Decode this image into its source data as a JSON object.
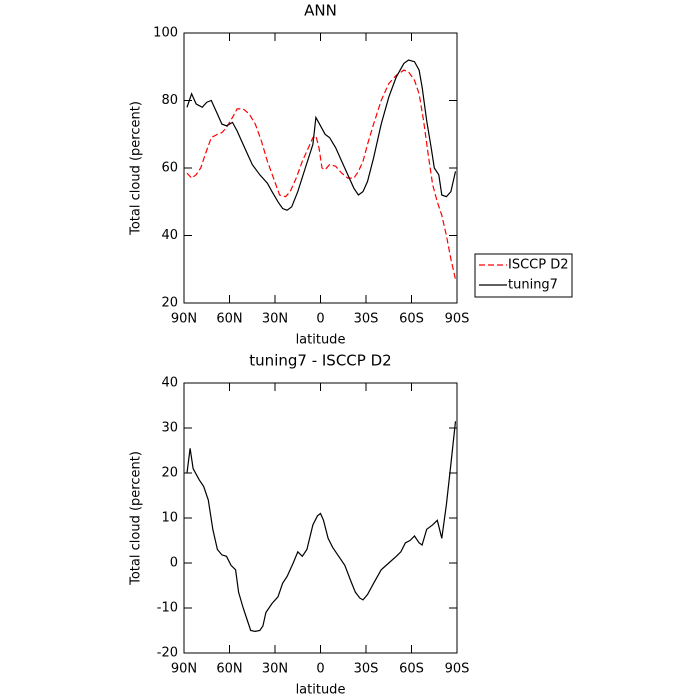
{
  "chart_data": [
    {
      "type": "line",
      "title": "ANN",
      "xlabel": "latitude",
      "ylabel": "Total cloud (percent)",
      "xlim": [
        90,
        -90
      ],
      "xticks": [
        {
          "value": 90,
          "label": "90N"
        },
        {
          "value": 60,
          "label": "60N"
        },
        {
          "value": 30,
          "label": "30N"
        },
        0,
        {
          "value": -30,
          "label": "30S"
        },
        {
          "value": -60,
          "label": "60S"
        },
        {
          "value": -90,
          "label": "90S"
        }
      ],
      "ylim": [
        20,
        100
      ],
      "yticks": [
        20,
        40,
        60,
        80,
        100
      ],
      "legend": "outside right",
      "series": [
        {
          "name": "ISCCP D2",
          "color": "#ff0000",
          "linestyle": "dashed",
          "x": [
            88,
            85,
            82,
            79,
            76,
            72,
            68,
            65,
            62,
            58,
            55,
            51,
            47,
            43,
            39,
            35,
            31,
            27,
            23,
            20,
            16,
            12,
            8,
            5,
            3,
            1,
            -1,
            -3,
            -6,
            -10,
            -14,
            -18,
            -22,
            -25,
            -28,
            -31,
            -35,
            -40,
            -45,
            -50,
            -55,
            -58,
            -62,
            -65,
            -68,
            -71,
            -74,
            -77,
            -80,
            -83,
            -86,
            -89
          ],
          "values": [
            58.5,
            57,
            58,
            60,
            64,
            69,
            70,
            70.5,
            72,
            75,
            77.5,
            77.5,
            76,
            73,
            68,
            62,
            57,
            52,
            51.5,
            53,
            57,
            62,
            66,
            69,
            69.5,
            66,
            60,
            59.5,
            61,
            60.5,
            58.5,
            57,
            57,
            59,
            62,
            67,
            73,
            80,
            85,
            87.5,
            89,
            88.5,
            86,
            82,
            74,
            64,
            55,
            50,
            46,
            40,
            33,
            27
          ]
        },
        {
          "name": "tuning7",
          "color": "#000000",
          "linestyle": "solid",
          "x": [
            88,
            85,
            82,
            78,
            75,
            72,
            68,
            65,
            62,
            58,
            55,
            52,
            48,
            45,
            40,
            35,
            32,
            28,
            25,
            22,
            19,
            15,
            10,
            5,
            3,
            0,
            -3,
            -6,
            -10,
            -14,
            -18,
            -22,
            -25,
            -28,
            -31,
            -35,
            -40,
            -45,
            -50,
            -55,
            -58,
            -62,
            -65,
            -67,
            -70,
            -73,
            -75,
            -78,
            -80,
            -83,
            -86,
            -89
          ],
          "values": [
            78,
            82,
            79,
            78,
            79.5,
            80,
            76,
            73,
            72.5,
            73.5,
            71,
            68,
            64,
            61,
            58,
            55.5,
            53,
            50,
            48,
            47.5,
            48.5,
            53,
            60,
            67,
            75,
            72.5,
            70,
            69,
            66,
            62,
            58,
            54,
            52,
            53,
            56,
            63,
            73,
            81,
            87,
            91,
            92,
            91.5,
            89,
            84,
            74,
            66,
            60,
            58,
            52,
            51.5,
            53,
            59
          ]
        }
      ]
    },
    {
      "type": "line",
      "title": "tuning7 - ISCCP D2",
      "xlabel": "latitude",
      "ylabel": "Total cloud (percent)",
      "xlim": [
        90,
        -90
      ],
      "xticks": [
        {
          "value": 90,
          "label": "90N"
        },
        {
          "value": 60,
          "label": "60N"
        },
        {
          "value": 30,
          "label": "30N"
        },
        0,
        {
          "value": -30,
          "label": "30S"
        },
        {
          "value": -60,
          "label": "60S"
        },
        {
          "value": -90,
          "label": "90S"
        }
      ],
      "ylim": [
        -20,
        40
      ],
      "yticks": [
        -20,
        -10,
        0,
        10,
        20,
        30,
        40
      ],
      "series": [
        {
          "color": "#000000",
          "linestyle": "solid",
          "x": [
            88,
            86,
            84,
            80,
            77,
            74,
            71,
            68,
            65,
            62,
            59,
            56,
            54,
            51,
            48,
            46,
            43,
            40,
            38,
            36,
            32,
            28,
            25,
            22,
            18,
            15,
            12,
            9,
            5,
            2,
            0,
            -2,
            -5,
            -8,
            -12,
            -16,
            -20,
            -23,
            -26,
            -28,
            -31,
            -35,
            -40,
            -45,
            -50,
            -53,
            -56,
            -59,
            -62,
            -65,
            -67,
            -70,
            -74,
            -77,
            -80,
            -83,
            -86,
            -89
          ],
          "values": [
            20,
            25.5,
            21,
            18.5,
            17,
            14,
            7.5,
            3,
            1.8,
            1.5,
            -0.5,
            -1.5,
            -6.5,
            -10,
            -13,
            -15,
            -15.2,
            -15,
            -14,
            -11,
            -9,
            -7.5,
            -4.5,
            -3,
            0,
            2.5,
            1.5,
            3,
            8.5,
            10.5,
            11,
            9.5,
            5.5,
            3.5,
            1.5,
            -0.5,
            -4,
            -6.5,
            -7.8,
            -8.2,
            -7,
            -4.5,
            -1.5,
            0,
            1.5,
            2.5,
            4.5,
            5,
            6,
            4.5,
            4,
            7.5,
            8.5,
            9.5,
            5.5,
            13,
            22,
            31.5
          ]
        }
      ]
    }
  ]
}
